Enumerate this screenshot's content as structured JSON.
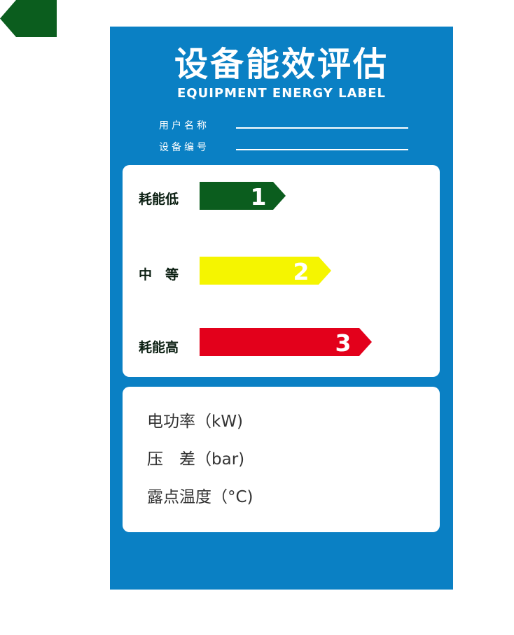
{
  "colors": {
    "panel_blue": "#0a80c4",
    "dark_green": "#0b5d1e",
    "yellow": "#f5f500",
    "red": "#e3001b",
    "white": "#ffffff"
  },
  "corner_tag": {
    "icon": "green-arrow-tag-icon"
  },
  "header": {
    "title": "设备能效评估",
    "subtitle": "EQUIPMENT ENERGY LABEL"
  },
  "fields": [
    {
      "label": "用户名称",
      "value": ""
    },
    {
      "label": "设备编号",
      "value": ""
    }
  ],
  "ratings": [
    {
      "label": "耗能低",
      "grade": "1",
      "color": "#0b5d1e"
    },
    {
      "label": "中　等",
      "grade": "2",
      "color": "#f5f500"
    },
    {
      "label": "耗能高",
      "grade": "3",
      "color": "#e3001b"
    }
  ],
  "specs": [
    {
      "label": "电功率（kW)"
    },
    {
      "label": "压　差（bar)"
    },
    {
      "label": "露点温度（°C)"
    }
  ]
}
